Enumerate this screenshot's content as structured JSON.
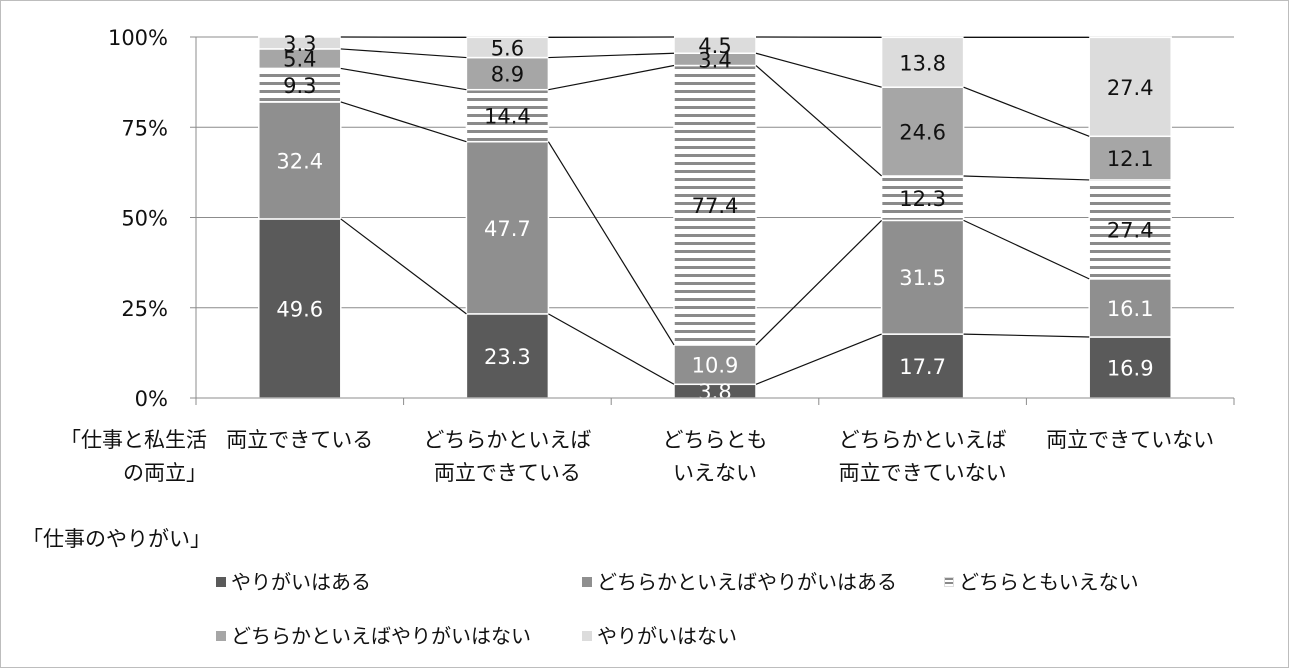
{
  "chart_data": {
    "type": "bar",
    "stacked": "percent",
    "categories": [
      [
        "両立できている"
      ],
      [
        "どちらかといえば",
        "両立できている"
      ],
      [
        "どちらとも",
        "いえない"
      ],
      [
        "どちらかといえば",
        "両立できていない"
      ],
      [
        "両立できていない"
      ]
    ],
    "x_axis_title": [
      "「仕事と私生活",
      "の両立」"
    ],
    "series_group_title": "「仕事のやりがい」",
    "y_ticks": [
      "0%",
      "25%",
      "50%",
      "75%",
      "100%"
    ],
    "ylim": [
      0,
      100
    ],
    "grid": true,
    "legend_position": "bottom",
    "series": [
      {
        "name": "やりがいはある",
        "color": "#5a5a5a",
        "pattern": "solid",
        "label_color": "#ffffff",
        "values": [
          49.6,
          23.3,
          3.8,
          17.7,
          16.9
        ]
      },
      {
        "name": "どちらかといえばやりがいはある",
        "color": "#8f8f8f",
        "pattern": "solid",
        "label_color": "#ffffff",
        "values": [
          32.4,
          47.7,
          10.9,
          31.5,
          16.1
        ]
      },
      {
        "name": "どちらともいえない",
        "color": "#8a8a8a",
        "pattern": "hatched",
        "label_color": "#111111",
        "values": [
          9.3,
          14.4,
          77.4,
          12.3,
          27.4
        ]
      },
      {
        "name": "どちらかといえばやりがいはない",
        "color": "#a6a6a6",
        "pattern": "solid",
        "label_color": "#111111",
        "values": [
          5.4,
          8.9,
          3.4,
          24.6,
          12.1
        ]
      },
      {
        "name": "やりがいはない",
        "color": "#dcdcdc",
        "pattern": "solid",
        "label_color": "#111111",
        "values": [
          3.3,
          5.6,
          4.5,
          13.8,
          27.4
        ]
      }
    ]
  }
}
